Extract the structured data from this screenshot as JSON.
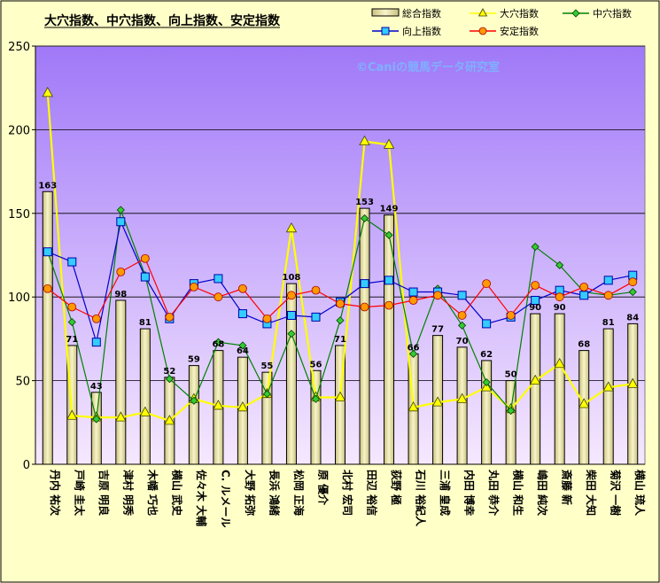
{
  "chart_data": {
    "type": "bar",
    "title": "大穴指数、中穴指数、向上指数、安定指数",
    "watermark": "©Caniの競馬データ研究室",
    "categories": [
      "丹内 祐次",
      "戸崎 圭太",
      "吉原 明良",
      "津村 明秀",
      "木幡 巧也",
      "横山 武史",
      "佐々木 大輔",
      "C. ルメール",
      "大野 拓弥",
      "長浜 鴻緒",
      "松岡 正海",
      "原 優介",
      "北村 宏司",
      "田辺 裕信",
      "荻野 極",
      "石川 裕紀人",
      "三浦 皇成",
      "内田 博幸",
      "丸田 恭介",
      "横山 和生",
      "嶋田 純次",
      "斎藤 新",
      "柴田 大知",
      "菊沢 一樹",
      "横山 琉人"
    ],
    "ylim": [
      0,
      250
    ],
    "yticks": [
      "0",
      "50",
      "100",
      "150",
      "200",
      "250"
    ],
    "series": [
      {
        "name": "総合指数",
        "type": "bar",
        "color": "#eeeaa0",
        "values": [
          163,
          71,
          43,
          98,
          81,
          52,
          59,
          68,
          64,
          55,
          108,
          56,
          71,
          153,
          149,
          66,
          77,
          70,
          62,
          50,
          90,
          90,
          68,
          81,
          84
        ],
        "data_labels": [
          "163",
          "71",
          "43",
          "98",
          "81",
          "52",
          "59",
          "68",
          "64",
          "55",
          "108",
          "56",
          "71",
          "153",
          "149",
          "66",
          "77",
          "70",
          "62",
          "50",
          "90",
          "90",
          "68",
          "81",
          "84"
        ]
      },
      {
        "name": "大穴指数",
        "type": "line",
        "color": "#ffff00",
        "marker": "triangle",
        "values": [
          222,
          29,
          28,
          28,
          31,
          26,
          39,
          35,
          34,
          42,
          141,
          40,
          40,
          193,
          191,
          34,
          37,
          39,
          46,
          33,
          50,
          60,
          36,
          46,
          48
        ]
      },
      {
        "name": "中穴指数",
        "type": "line",
        "color": "#008000",
        "marker": "diamond",
        "values": [
          127,
          85,
          27,
          152,
          113,
          51,
          38,
          73,
          71,
          42,
          78,
          39,
          86,
          147,
          137,
          66,
          105,
          83,
          49,
          32,
          130,
          119,
          103,
          101,
          103
        ]
      },
      {
        "name": "向上指数",
        "type": "line",
        "color": "#0000cc",
        "marker": "square",
        "values": [
          127,
          121,
          73,
          145,
          112,
          87,
          108,
          111,
          90,
          84,
          89,
          88,
          97,
          108,
          110,
          103,
          103,
          101,
          84,
          88,
          98,
          104,
          101,
          110,
          113
        ]
      },
      {
        "name": "安定指数",
        "type": "line",
        "color": "#ff0000",
        "marker": "circle",
        "values": [
          105,
          94,
          87,
          115,
          123,
          88,
          106,
          100,
          105,
          87,
          101,
          104,
          96,
          94,
          95,
          98,
          101,
          89,
          108,
          89,
          107,
          100,
          106,
          101,
          109
        ]
      }
    ]
  }
}
